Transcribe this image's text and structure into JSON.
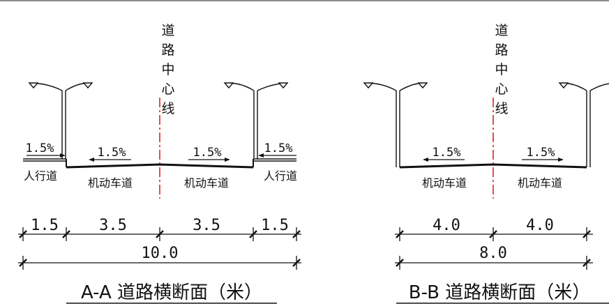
{
  "centerline_label": [
    "道",
    "路",
    "中",
    "心",
    "线"
  ],
  "section_aa": {
    "title": "A-A 道路横断面（米）",
    "slopes": [
      "1.5%",
      "1.5%",
      "1.5%",
      "1.5%"
    ],
    "lane_labels": [
      "人行道",
      "机动车道",
      "机动车道",
      "人行道"
    ],
    "widths": [
      "1.5",
      "3.5",
      "3.5",
      "1.5"
    ],
    "total_width": "10.0"
  },
  "section_bb": {
    "title": "B-B 道路横断面（米）",
    "slopes": [
      "1.5%",
      "1.5%"
    ],
    "lane_labels": [
      "机动车道",
      "机动车道"
    ],
    "widths": [
      "4.0",
      "4.0"
    ],
    "total_width": "8.0"
  },
  "colors": {
    "line": "#111111",
    "centerline": "#e0202a"
  }
}
